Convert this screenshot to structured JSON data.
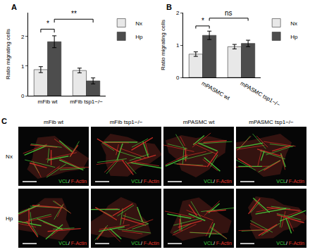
{
  "chart_data": [
    {
      "type": "bar",
      "panel": "A",
      "categories": [
        "mFib wt",
        "mFib tsp1−/−"
      ],
      "ylabel": "Ratio migrating cells",
      "ylim": [
        0,
        2.8
      ],
      "yticks": [
        0,
        1,
        2
      ],
      "legend": "right",
      "series": [
        {
          "name": "Nx",
          "color": "#e8e8e8",
          "values": [
            0.88,
            0.85
          ],
          "errors": [
            0.1,
            0.08
          ]
        },
        {
          "name": "Hp",
          "color": "#4d4d4d",
          "values": [
            1.82,
            0.5
          ],
          "errors": [
            0.2,
            0.1
          ]
        }
      ],
      "significance": [
        {
          "from": [
            0,
            0
          ],
          "to": [
            0,
            1
          ],
          "label": "*"
        },
        {
          "from": [
            0,
            1
          ],
          "to": [
            1,
            1
          ],
          "label": "**"
        }
      ]
    },
    {
      "type": "bar",
      "panel": "B",
      "categories": [
        "mPASMC wt",
        "mPASMC tsp1−/−"
      ],
      "ylabel": "Ratio migrating cells",
      "ylim": [
        0,
        2
      ],
      "yticks": [
        0,
        1,
        2
      ],
      "legend": "right",
      "series": [
        {
          "name": "Nx",
          "color": "#e8e8e8",
          "values": [
            0.72,
            0.95
          ],
          "errors": [
            0.07,
            0.07
          ]
        },
        {
          "name": "Hp",
          "color": "#4d4d4d",
          "values": [
            1.3,
            1.05
          ],
          "errors": [
            0.13,
            0.1
          ]
        }
      ],
      "significance": [
        {
          "from": [
            0,
            0
          ],
          "to": [
            0,
            1
          ],
          "label": "*"
        },
        {
          "from": [
            0,
            1
          ],
          "to": [
            1,
            1
          ],
          "label": "ns"
        }
      ]
    }
  ],
  "panel_c": {
    "panel": "C",
    "columns": [
      "mFib wt",
      "mFib tsp1−/−",
      "mPASMC wt",
      "mPASMC tsp1−/−"
    ],
    "rows": [
      "Nx",
      "Hp"
    ],
    "stain_labels": [
      {
        "text": "VCL",
        "color": "#3fd03f"
      },
      {
        "text": "/ ",
        "color": "#ffffff"
      },
      {
        "text": "F-Actin",
        "color": "#e0352a"
      }
    ]
  }
}
